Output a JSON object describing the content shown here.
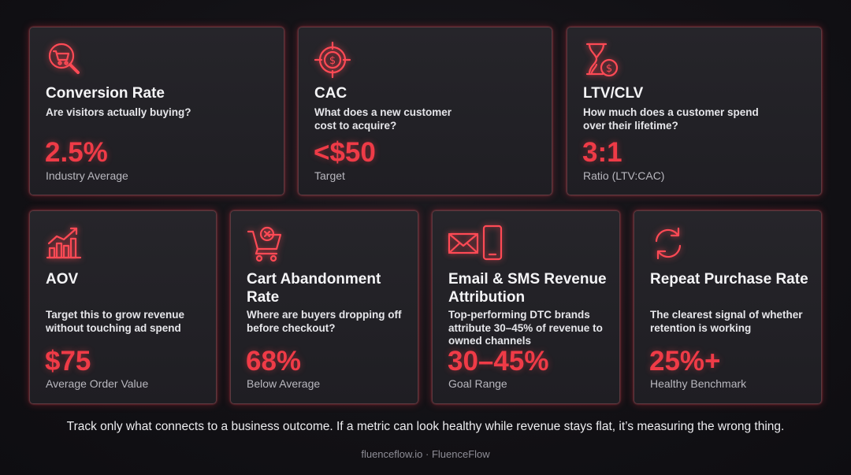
{
  "cards": [
    {
      "title": "Conversion Rate",
      "desc": "Are visitors actually buying?",
      "value": "2.5%",
      "sub": "Industry Average",
      "icon": "cart-search-icon"
    },
    {
      "title": "CAC",
      "desc": "What does a new customer cost to acquire?",
      "value": "<$50",
      "sub": "Target",
      "icon": "target-dollar-icon"
    },
    {
      "title": "LTV/CLV",
      "desc": "How much does a customer spend over their lifetime?",
      "value": "3:1",
      "sub": "Ratio (LTV:CAC)",
      "icon": "hourglass-dollar-icon"
    },
    {
      "title": "AOV",
      "desc": "Target this to grow revenue without touching ad spend",
      "value": "$75",
      "sub": "Average Order Value",
      "icon": "growth-chart-icon"
    },
    {
      "title": "Cart Abandonment Rate",
      "desc": "Where are buyers dropping off before checkout?",
      "value": "68%",
      "sub": "Below Average",
      "icon": "cart-cancel-icon"
    },
    {
      "title": "Email & SMS Revenue Attribution",
      "desc": "Top-performing DTC brands attribute 30–45% of revenue to owned channels",
      "value": "30–45%",
      "sub": "Goal Range",
      "icon": "email-phone-icon"
    },
    {
      "title": "Repeat Purchase Rate",
      "desc": "The clearest signal of whether retention is working",
      "value": "25%+",
      "sub": "Healthy Benchmark",
      "icon": "refresh-icon"
    }
  ],
  "footer": "Track only what connects to a business outcome. If a metric can look healthy while revenue stays flat, it’s measuring the wrong thing.",
  "brand": "fluenceflow.io · FluenceFlow",
  "colors": {
    "accent": "#ef3b47",
    "background": "#141317",
    "card": "#222126",
    "border": "#5b3a40"
  }
}
